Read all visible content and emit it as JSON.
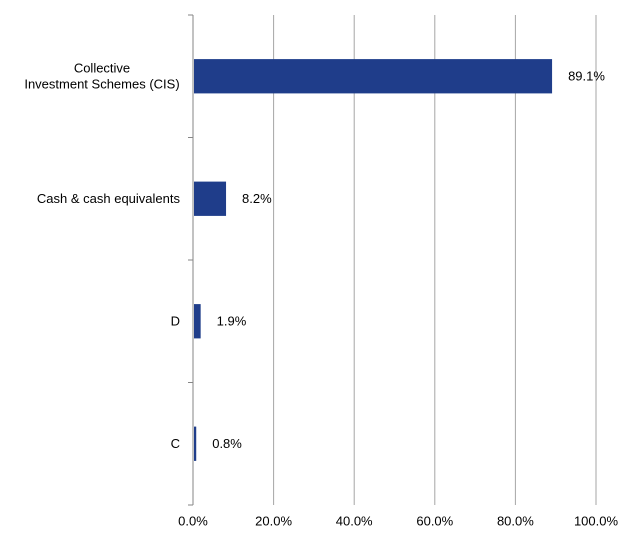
{
  "chart_data": {
    "type": "bar",
    "orientation": "horizontal",
    "categories": [
      [
        "Collective",
        "Investment Schemes (CIS)"
      ],
      [
        "Cash & cash equivalents"
      ],
      [
        "D"
      ],
      [
        "C"
      ]
    ],
    "values": [
      89.1,
      8.2,
      1.9,
      0.8
    ],
    "data_labels": [
      "89.1%",
      "8.2%",
      "1.9%",
      "0.8%"
    ],
    "xlim": [
      0,
      100
    ],
    "x_ticks": [
      0,
      20,
      40,
      60,
      80,
      100
    ],
    "x_tick_labels": [
      "0.0%",
      "20.0%",
      "40.0%",
      "60.0%",
      "80.0%",
      "100.0%"
    ],
    "grid": "vertical",
    "legend": "none",
    "bar_color": "#1f3d8a",
    "grid_color": "#a6a6a6",
    "axis_color": "#868686"
  }
}
